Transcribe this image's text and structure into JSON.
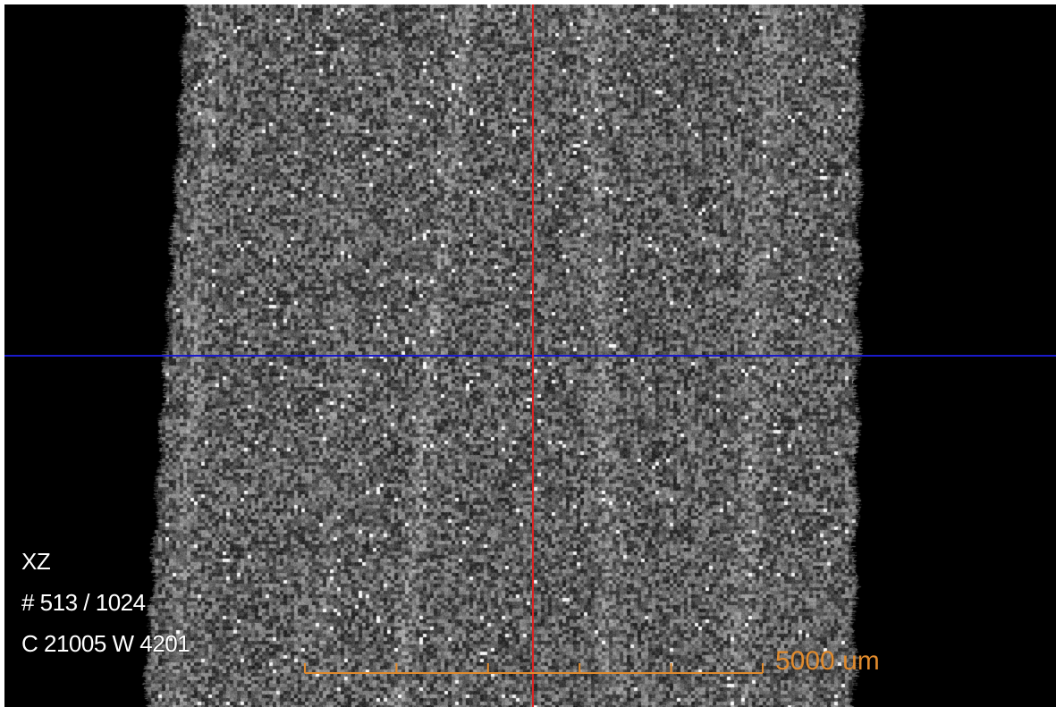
{
  "viewer": {
    "plane": "XZ",
    "slice": "# 513 / 1024",
    "window_level": "C 21005 W 4201"
  },
  "scale_bar": {
    "label": "5000 um",
    "divisions": 5,
    "color": "#e08a2c"
  },
  "crosshair": {
    "horizontal_color": "#1a1acc",
    "vertical_color": "#e02020"
  },
  "colors": {
    "background": "#000000",
    "overlay_text": "#ffffff"
  }
}
